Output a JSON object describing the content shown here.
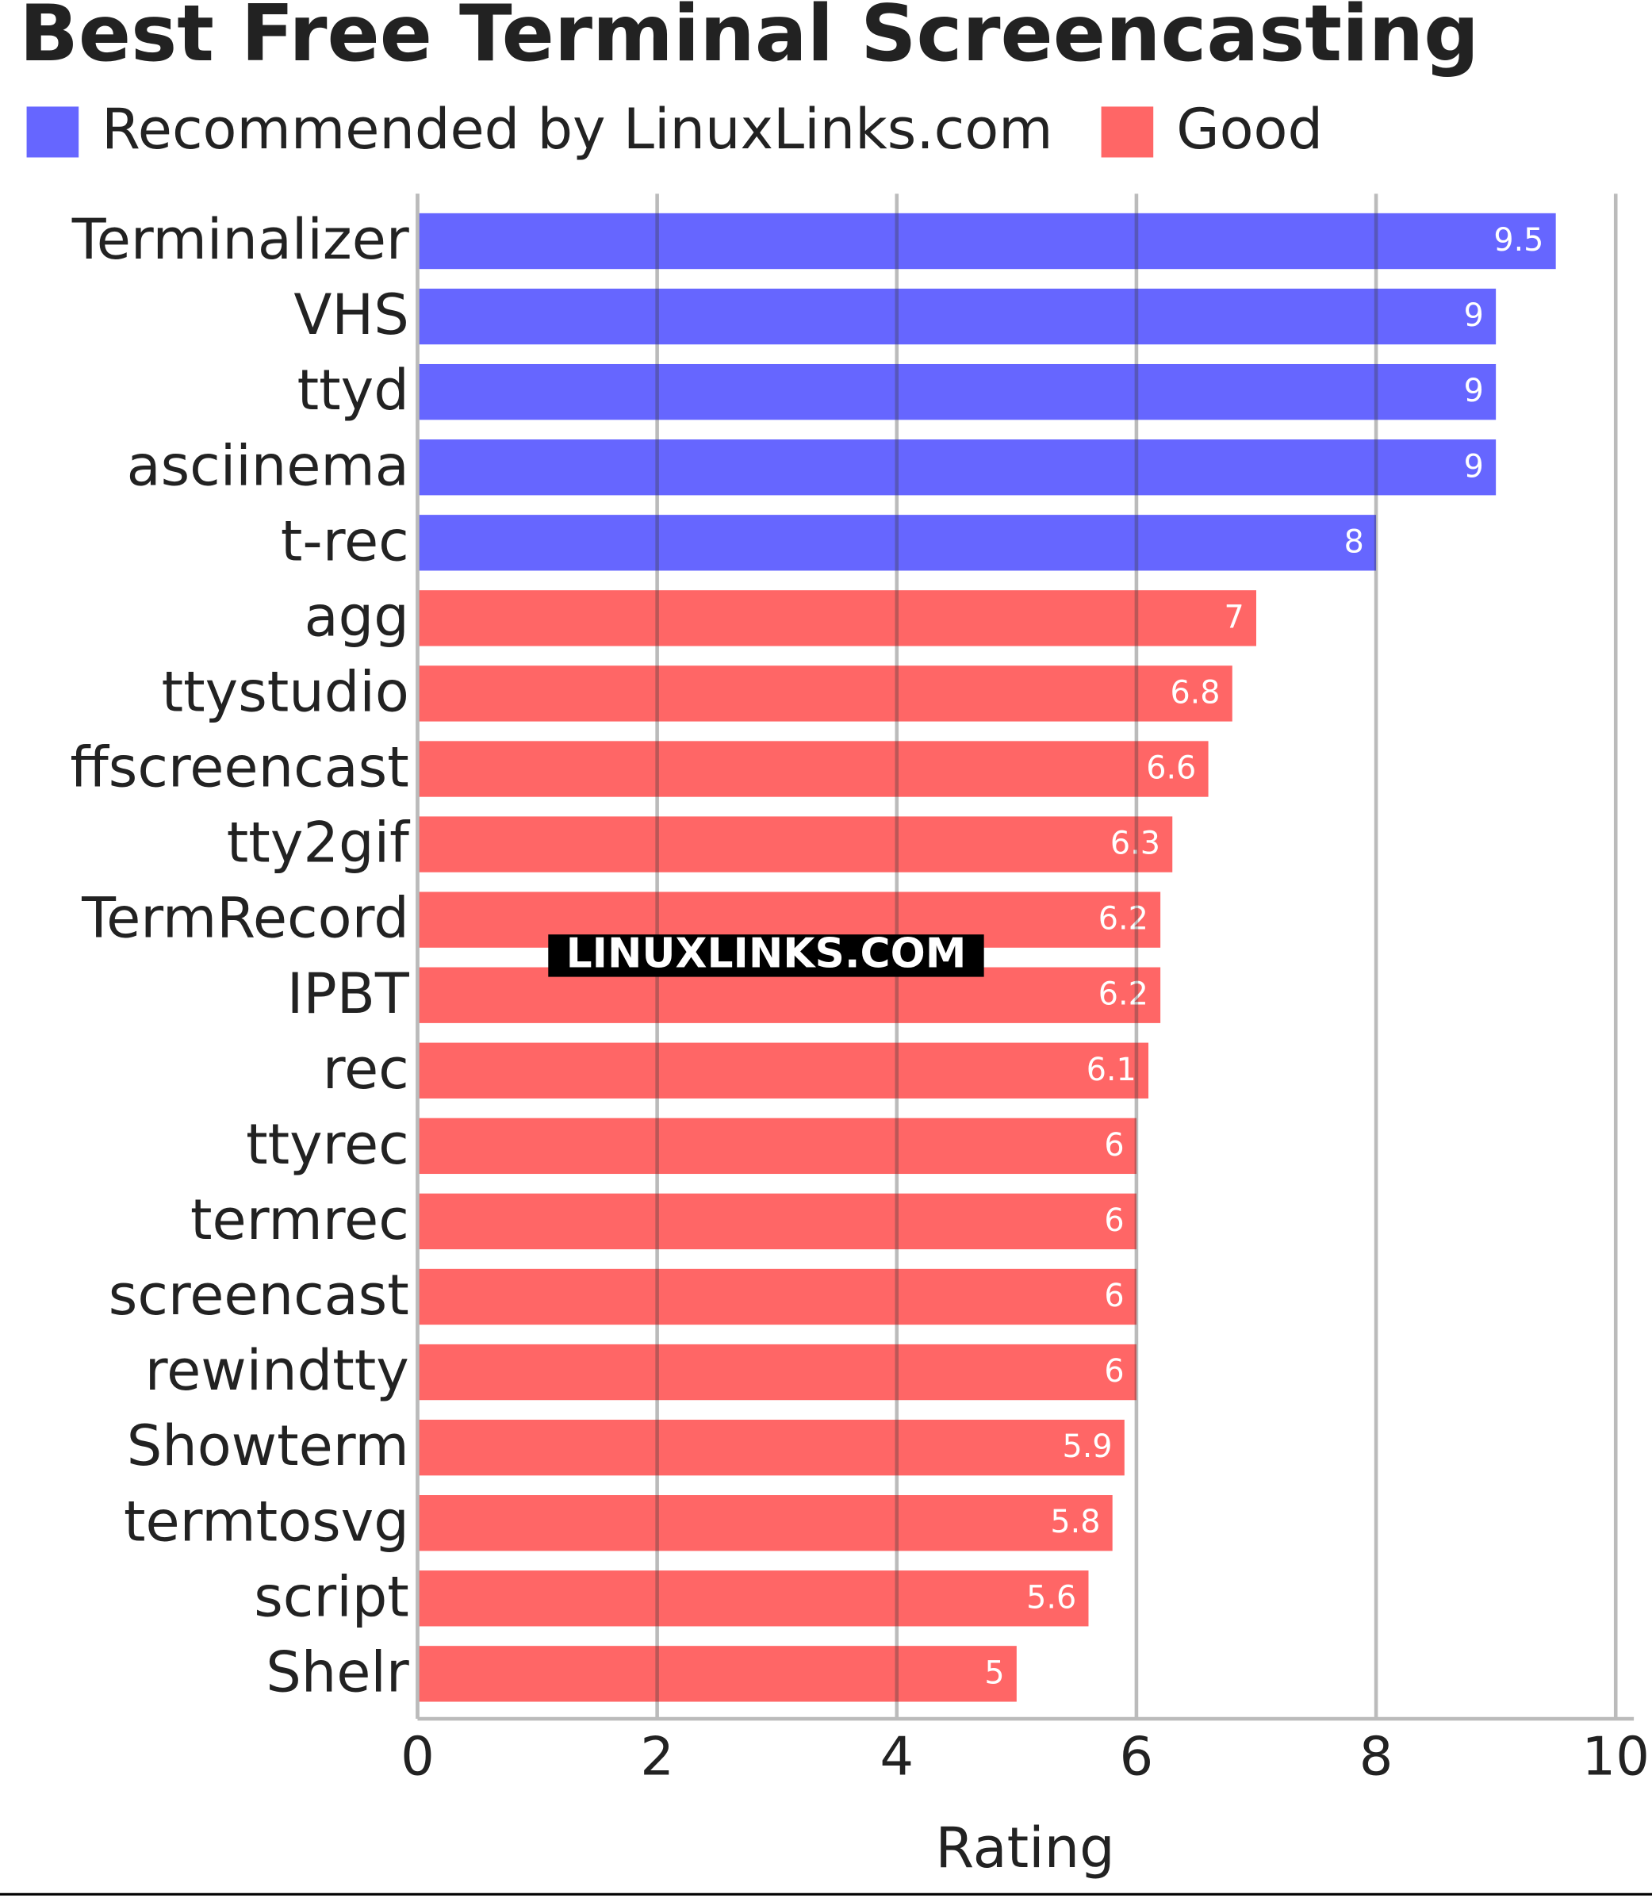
{
  "chart_data": {
    "type": "bar",
    "orientation": "horizontal",
    "title": "Best Free Terminal Screencasting",
    "categories": [
      "Terminalizer",
      "VHS",
      "ttyd",
      "asciinema",
      "t-rec",
      "agg",
      "ttystudio",
      "ffscreencast",
      "tty2gif",
      "TermRecord",
      "IPBT",
      "rec",
      "ttyrec",
      "termrec",
      "screencast",
      "rewindtty",
      "Showterm",
      "termtosvg",
      "script",
      "Shelr"
    ],
    "series": [
      {
        "name": "Recommended by LinuxLinks.com",
        "color": "#6666ff",
        "values": [
          9.5,
          9,
          9,
          9,
          8,
          null,
          null,
          null,
          null,
          null,
          null,
          null,
          null,
          null,
          null,
          null,
          null,
          null,
          null,
          null
        ]
      },
      {
        "name": "Good",
        "color": "#ff6666",
        "values": [
          null,
          null,
          null,
          null,
          null,
          7,
          6.8,
          6.6,
          6.3,
          6.2,
          6.2,
          6.1,
          6,
          6,
          6,
          6,
          5.9,
          5.8,
          5.6,
          5
        ]
      }
    ],
    "xlabel": "Rating",
    "xlim": [
      0,
      10
    ],
    "xticks": [
      0,
      2,
      4,
      6,
      8,
      10
    ],
    "grid": true,
    "watermark": "LINUXLINKS.COM"
  }
}
